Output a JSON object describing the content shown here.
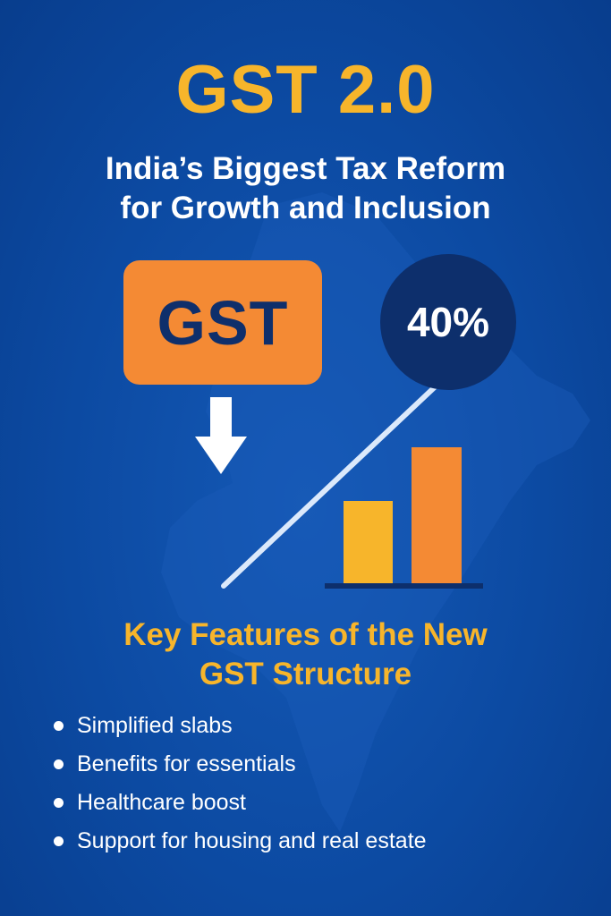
{
  "header": {
    "title": "GST 2.0",
    "subtitle_line1": "India’s Biggest Tax Reform",
    "subtitle_line2": "for Growth and Inclusion"
  },
  "graphic": {
    "gst_box_label": "GST",
    "down_arrow_icon": "arrow-down-icon",
    "percent_badge": "40%",
    "growth_arrow_icon": "trend-up-arrow-icon",
    "bar_chart_icon": "bar-chart-icon",
    "background_map": "india-map-silhouette"
  },
  "features": {
    "heading_line1": "Key Features of the New",
    "heading_line2": "GST Structure",
    "items": [
      "Simplified slabs",
      "Benefits for essentials",
      "Healthcare boost",
      "Support for housing and real estate"
    ]
  },
  "colors": {
    "background": "#0c4aa2",
    "accent_yellow": "#f7b52b",
    "accent_orange": "#f48a34",
    "dark_navy": "#0d2f6c",
    "text_white": "#ffffff"
  }
}
